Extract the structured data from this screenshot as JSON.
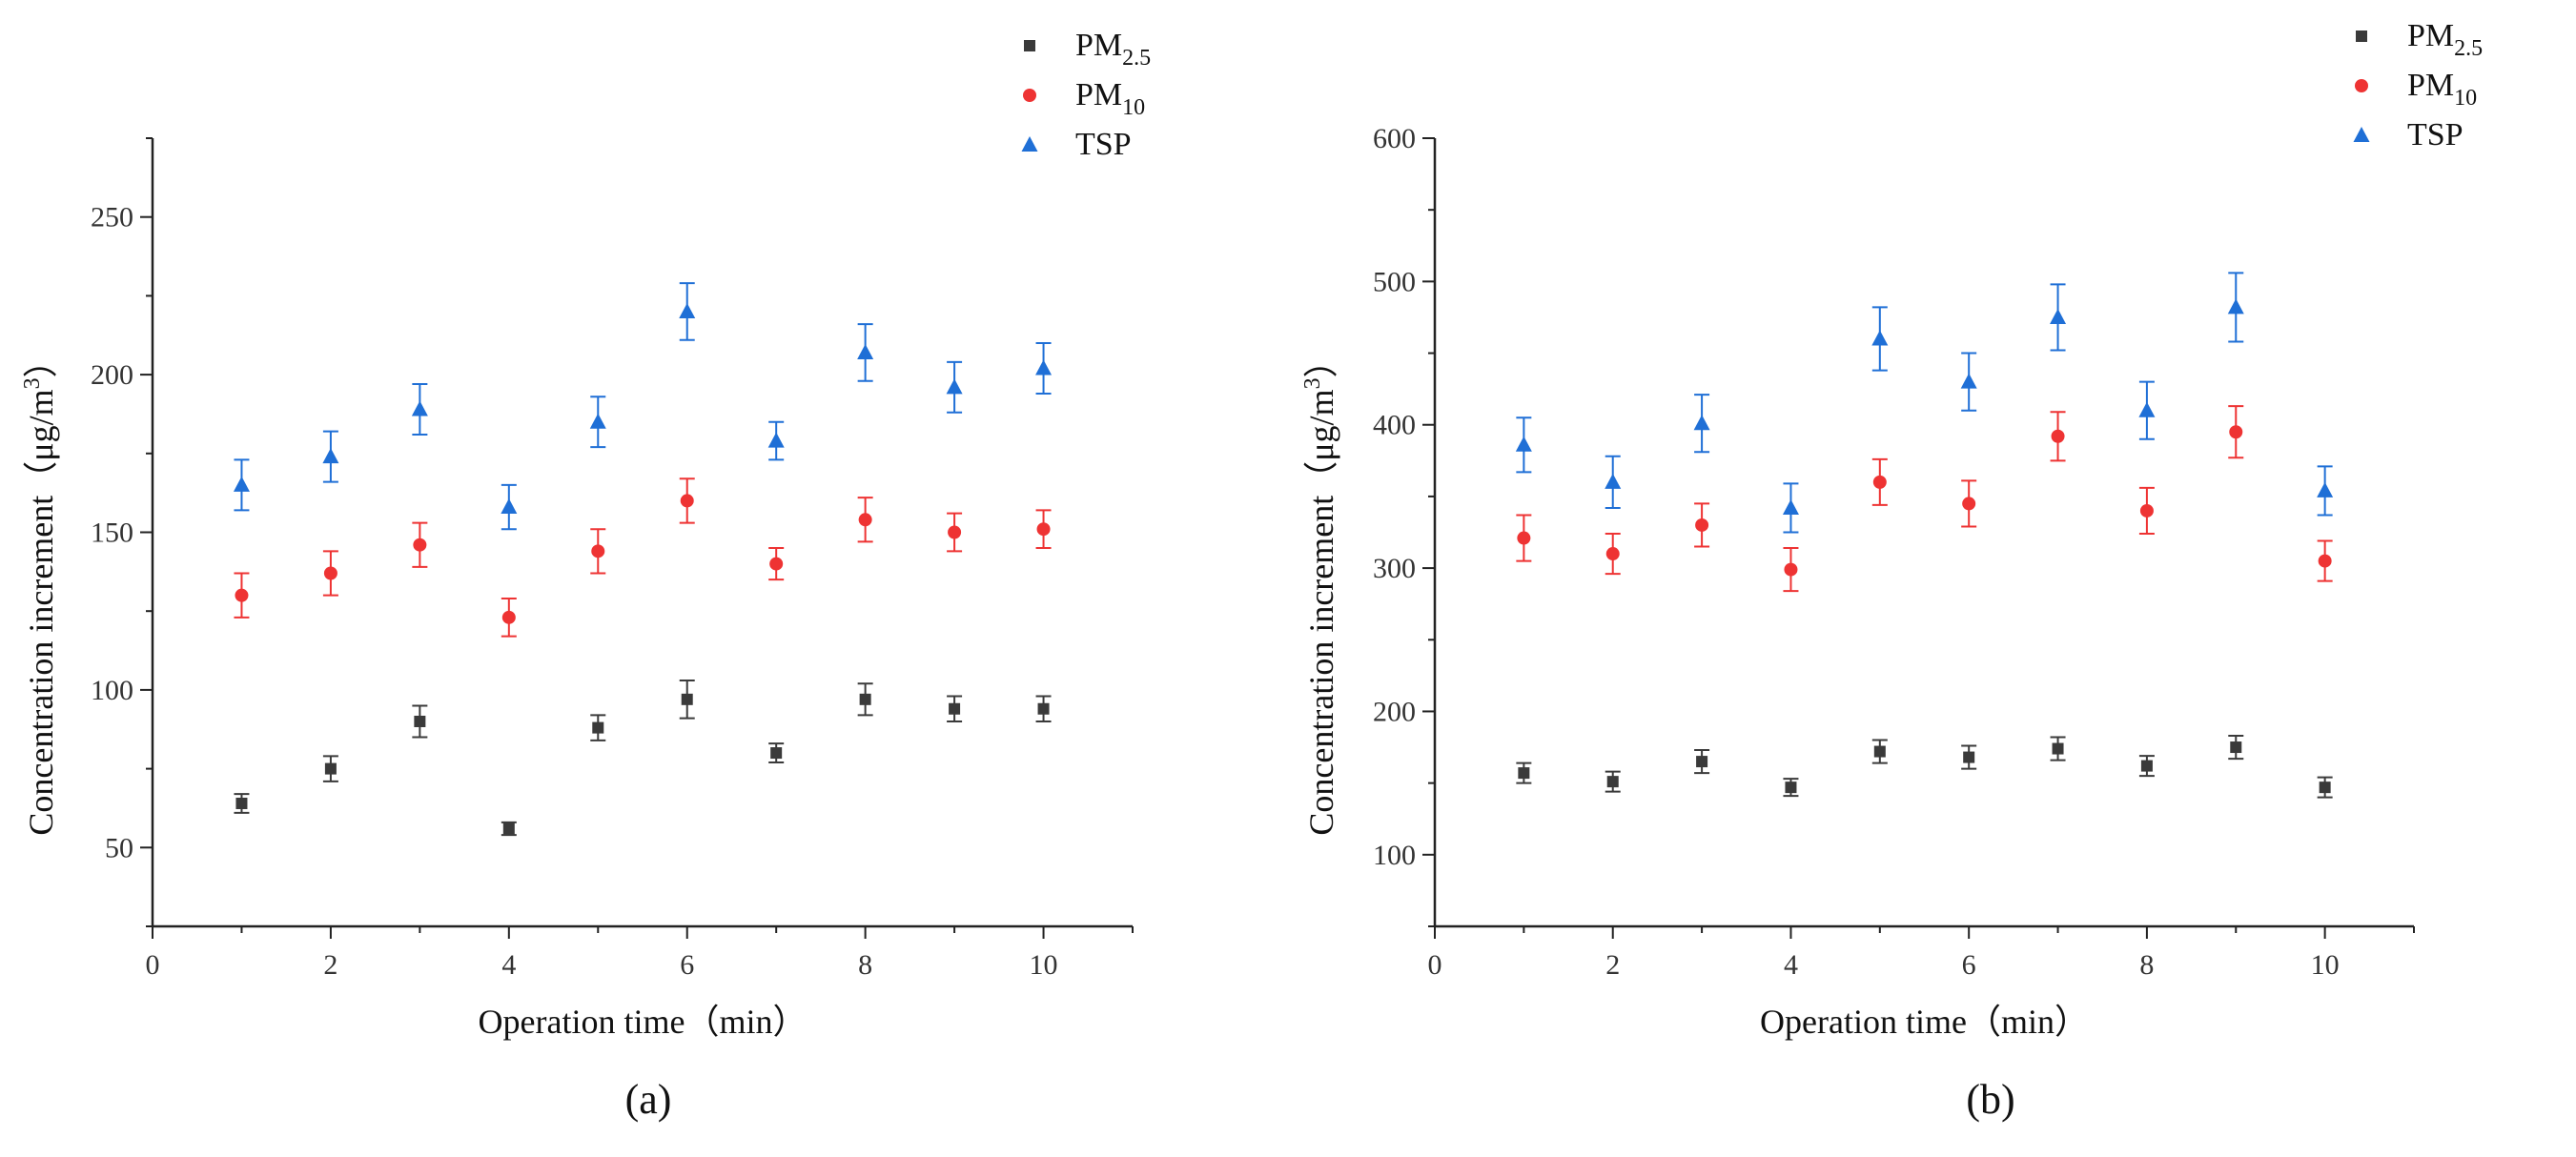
{
  "chart_data": [
    {
      "type": "scatter",
      "panel_label": "(a)",
      "xlabel": "Operation time（min）",
      "ylabel": "Concentration increment（μg/m³）",
      "ylabel_main": "Concentration increment（μg/m",
      "ylabel_sup": "3",
      "ylabel_close": "）",
      "xlim": [
        0,
        11
      ],
      "ylim": [
        25,
        275
      ],
      "x_ticks": [
        0,
        2,
        4,
        6,
        8,
        10
      ],
      "y_ticks": [
        50,
        100,
        150,
        200,
        250
      ],
      "x": [
        1,
        2,
        3,
        4,
        5,
        6,
        7,
        8,
        9,
        10
      ],
      "legend_position": "top-right",
      "series": [
        {
          "name": "PM2.5",
          "name_main": "PM",
          "name_sub": "2.5",
          "marker": "square",
          "color": "#3a3a3a",
          "values": [
            64,
            75,
            90,
            56,
            88,
            97,
            80,
            97,
            94,
            94
          ],
          "errors": [
            3,
            4,
            5,
            2,
            4,
            6,
            3,
            5,
            4,
            4
          ]
        },
        {
          "name": "PM10",
          "name_main": "PM",
          "name_sub": "10",
          "marker": "circle",
          "color": "#ee3333",
          "values": [
            130,
            137,
            146,
            123,
            144,
            160,
            140,
            154,
            150,
            151
          ],
          "errors": [
            7,
            7,
            7,
            6,
            7,
            7,
            5,
            7,
            6,
            6
          ]
        },
        {
          "name": "TSP",
          "name_main": "TSP",
          "name_sub": "",
          "marker": "triangle",
          "color": "#1f6fd6",
          "values": [
            165,
            174,
            189,
            158,
            185,
            220,
            179,
            207,
            196,
            202
          ],
          "errors": [
            8,
            8,
            8,
            7,
            8,
            9,
            6,
            9,
            8,
            8
          ]
        }
      ]
    },
    {
      "type": "scatter",
      "panel_label": "(b)",
      "xlabel": "Operation time（min）",
      "ylabel": "Concentration increment（μg/m³）",
      "ylabel_main": "Concentration increment（μg/m",
      "ylabel_sup": "3",
      "ylabel_close": "）",
      "xlim": [
        0,
        11
      ],
      "ylim": [
        50,
        600
      ],
      "x_ticks": [
        0,
        2,
        4,
        6,
        8,
        10
      ],
      "y_ticks": [
        100,
        200,
        300,
        400,
        500,
        600
      ],
      "x": [
        1,
        2,
        3,
        4,
        5,
        6,
        7,
        8,
        9,
        10
      ],
      "legend_position": "top-right",
      "series": [
        {
          "name": "PM2.5",
          "name_main": "PM",
          "name_sub": "2.5",
          "marker": "square",
          "color": "#3a3a3a",
          "values": [
            157,
            151,
            165,
            147,
            172,
            168,
            174,
            162,
            175,
            147
          ],
          "errors": [
            7,
            7,
            8,
            6,
            8,
            8,
            8,
            7,
            8,
            7
          ]
        },
        {
          "name": "PM10",
          "name_main": "PM",
          "name_sub": "10",
          "marker": "circle",
          "color": "#ee3333",
          "values": [
            321,
            310,
            330,
            299,
            360,
            345,
            392,
            340,
            395,
            305
          ],
          "errors": [
            16,
            14,
            15,
            15,
            16,
            16,
            17,
            16,
            18,
            14
          ]
        },
        {
          "name": "TSP",
          "name_main": "TSP",
          "name_sub": "",
          "marker": "triangle",
          "color": "#1f6fd6",
          "values": [
            386,
            360,
            401,
            342,
            460,
            430,
            475,
            410,
            482,
            354
          ],
          "errors": [
            19,
            18,
            20,
            17,
            22,
            20,
            23,
            20,
            24,
            17
          ]
        }
      ]
    }
  ]
}
